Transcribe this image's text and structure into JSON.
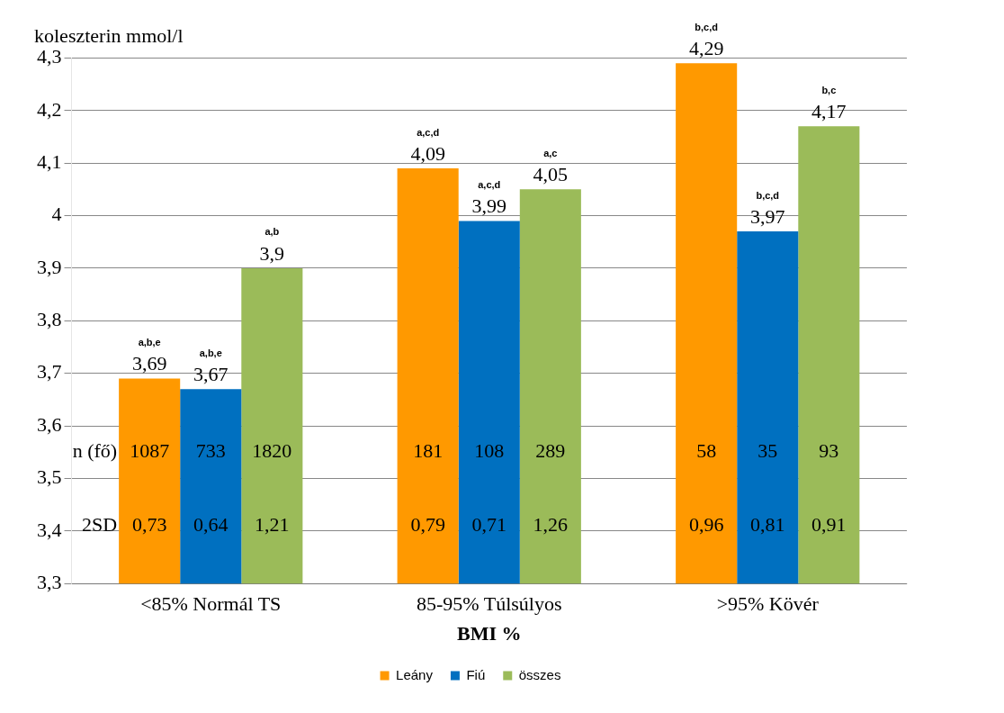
{
  "chart_data": {
    "type": "bar",
    "ylabel": "koleszterin mmol/l",
    "xlabel": "BMI %",
    "categories": [
      "<85% Normál TS",
      "85-95% Túlsúlyos",
      ">95% Kövér"
    ],
    "series": [
      {
        "name": "Leány",
        "color": "#ff9900",
        "values": [
          3.69,
          4.09,
          4.29
        ],
        "value_labels": [
          "3,69",
          "4,09",
          "4,29"
        ]
      },
      {
        "name": "Fiú",
        "color": "#0070c0",
        "values": [
          3.67,
          3.99,
          3.97
        ],
        "value_labels": [
          "3,67",
          "3,99",
          "3,97"
        ]
      },
      {
        "name": "összes",
        "color": "#9bbb59",
        "values": [
          3.9,
          4.05,
          4.17
        ],
        "value_labels": [
          "3,9",
          "4,05",
          "4,17"
        ]
      }
    ],
    "ylim": [
      3.3,
      4.3
    ],
    "yticks": [
      {
        "value": 3.3,
        "label": "3,3"
      },
      {
        "value": 3.4,
        "label": "3,4"
      },
      {
        "value": 3.5,
        "label": "3,5"
      },
      {
        "value": 3.6,
        "label": "3,6"
      },
      {
        "value": 3.7,
        "label": "3,7"
      },
      {
        "value": 3.8,
        "label": "3,8"
      },
      {
        "value": 3.9,
        "label": "3,9"
      },
      4,
      {
        "value": 4.1,
        "label": "4,1"
      },
      {
        "value": 4.2,
        "label": "4,2"
      },
      {
        "value": 4.3,
        "label": "4,3"
      }
    ],
    "grid": "y",
    "legend": "bottom",
    "annotations": [
      "n (fő)",
      "2SD",
      "a,b,e",
      "a,b,e",
      "a,b",
      "1087",
      "733",
      "1820",
      "0,73",
      "0,64",
      "1,21",
      "a,c,d",
      "a,c,d",
      "a,c",
      "181",
      "108",
      "289",
      "0,79",
      "0,71",
      "1,26",
      "b,c,d",
      "b,c,d",
      "b,c",
      "58",
      "35",
      "93",
      "0,96",
      "0,81",
      "0,91"
    ]
  }
}
